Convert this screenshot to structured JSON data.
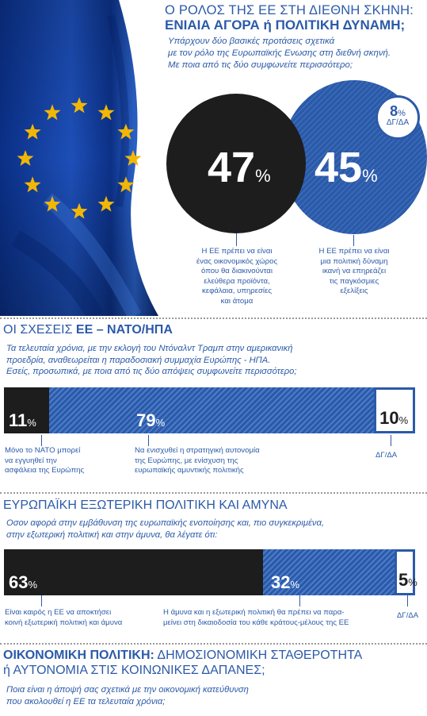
{
  "section1": {
    "title_line1": "Ο ΡΟΛΟΣ ΤΗΣ ΕΕ ΣΤΗ ΔΙΕΘΝΗ ΣΚΗΝΗ:",
    "title_line2": "ΕΝΙΑΙΑ ΑΓΟΡΑ ή ΠΟΛΙΤΙΚΗ ΔΥΝΑΜΗ;",
    "question_lines": [
      "Υπάρχουν δύο βασικές προτάσεις σχετικά",
      "με τον ρόλο της Ευρωπαϊκής Ενωσης στη διεθνή σκηνή.",
      "Με ποια από τις δύο συμφωνείτε περισσότερο;"
    ],
    "dk_label": "ΔΓ/ΔΑ",
    "market_caption_lines": [
      "Η ΕΕ πρέπει να είναι",
      "ένας οικονομικός χώρος",
      "όπου θα διακινούνται",
      "ελεύθερα προϊόντα,",
      "κεφάλαια, υπηρεσίες",
      "και άτομα"
    ],
    "power_caption_lines": [
      "Η ΕΕ πρέπει να είναι",
      "μια πολιτική δύναμη",
      "ικανή να επηρεάζει",
      "τις παγκόσμιες",
      "εξελίξεις"
    ]
  },
  "section2": {
    "title_plain": "ΟΙ ΣΧΕΣΕΙΣ ",
    "title_bold": "ΕΕ – ΝΑΤΟ/ΗΠΑ",
    "question_lines": [
      "Τα τελευταία χρόνια, με την εκλογή του Ντόναλντ Τραμπ στην αμερικανική",
      "προεδρία, αναθεωρείται η παραδοσιακή συμμαχία Ευρώπης - ΗΠΑ.",
      "Εσείς, προσωπικά, με ποια από τις δύο απόψεις συμφωνείτε περισσότερο;"
    ],
    "nato_caption_lines": [
      "Μόνο το ΝΑΤΟ μπορεί",
      "να εγγυηθεί την",
      "ασφάλεια της Ευρώπης"
    ],
    "autonomy_caption_lines": [
      "Να ενισχυθεί η στρατηγική αυτονομία",
      "της Ευρώπης, με ενίσχυση της",
      "ευρωπαϊκής αμυντικής πολιτικής"
    ],
    "dk_caption": "ΔΓ/ΔΑ"
  },
  "section3": {
    "title": "ΕΥΡΩΠΑΪΚΗ ΕΞΩΤΕΡΙΚΗ ΠΟΛΙΤΙΚΗ ΚΑΙ ΑΜΥΝΑ",
    "question_lines": [
      "Οσον αφορά στην εμβάθυνση της ευρωπαϊκής ενοποίησης και, πιο συγκεκριμένα,",
      "στην εξωτερική πολιτική και στην άμυνα, θα λέγατε ότι:"
    ],
    "common_caption_lines": [
      "Είναι καιρός η ΕΕ να αποκτήσει",
      "κοινή εξωτερική πολιτική και άμυνα"
    ],
    "national_caption_lines": [
      "Η άμυνα και η εξωτερική πολιτική θα πρέπει να παρα-",
      "μείνει στη δικαιοδοσία του κάθε κράτους-μέλους της ΕΕ"
    ],
    "dk_caption": "ΔΓ/ΔΑ"
  },
  "section4": {
    "title_bold": "ΟΙΚΟΝΟΜΙΚΗ ΠΟΛΙΤΙΚΗ:",
    "title_rest": " ΔΗΜΟΣΙΟΝΟΜΙΚΗ ΣΤΑΘΕΡΟΤΗΤΑ",
    "title_line2": "ή ΑΥΤΟΝΟΜΙΑ ΣΤΙΣ ΚΟΙΝΩΝΙΚΕΣ ΔΑΠΑΝΕΣ;",
    "question_lines": [
      "Ποια είναι η άποψή σας σχετικά με την οικονομική κατεύθυνση",
      "που ακολουθεί η ΕΕ τα τελευταία χρόνια;"
    ]
  },
  "colors": {
    "accent_blue": "#2b5aa8",
    "black": "#1d1d1d",
    "star_gold": "#f2b705"
  },
  "chart_data": [
    {
      "type": "bar",
      "categories": [
        "Η ΕΕ πρέπει να είναι ένας οικονομικός χώρος",
        "Η ΕΕ πρέπει να είναι μια πολιτική δύναμη",
        "ΔΓ/ΔΑ"
      ],
      "values": [
        47,
        45,
        8
      ],
      "labels": [
        "47",
        "45",
        "8"
      ],
      "unit": "%"
    },
    {
      "type": "bar",
      "categories": [
        "Μόνο το ΝΑΤΟ",
        "Στρατηγική αυτονομία",
        "ΔΓ/ΔΑ"
      ],
      "values": [
        11,
        79,
        10
      ],
      "labels": [
        "11",
        "79",
        "10"
      ],
      "unit": "%"
    },
    {
      "type": "bar",
      "categories": [
        "Κοινή εξωτερική πολιτική και άμυνα",
        "Δικαιοδοσία κράτους-μέλους",
        "ΔΓ/ΔΑ"
      ],
      "values": [
        63,
        32,
        5
      ],
      "labels": [
        "63",
        "32",
        "5"
      ],
      "unit": "%"
    }
  ]
}
